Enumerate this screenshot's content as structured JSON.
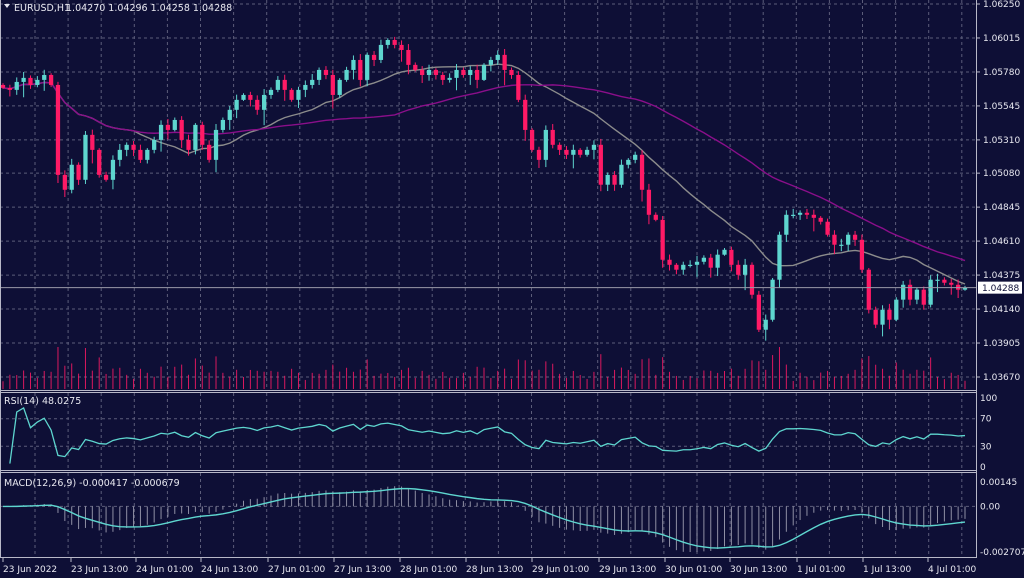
{
  "header": {
    "symbol": "EURUSD,H1",
    "ohlc": "1.04270 1.04296 1.04258 1.04288"
  },
  "colors": {
    "background": "#0e0f36",
    "bull": "#5ed6cf",
    "bear": "#ff1a66",
    "ma_fast": "#8c8c8c",
    "ma_slow": "#8a0f8a",
    "rsi": "#5ed6cf",
    "macd_hist": "#b0b0c0",
    "macd_signal": "#5ed6cf",
    "grid": "#5c5d7a"
  },
  "chart_data": {
    "type": "candlestick",
    "price_axis": {
      "range": [
        1.0367,
        1.0625
      ],
      "ticks": [
        "1.06250",
        "1.06015",
        "1.05780",
        "1.05545",
        "1.05310",
        "1.05080",
        "1.04845",
        "1.04610",
        "1.04375",
        "1.04140",
        "1.03905",
        "1.03670"
      ]
    },
    "current_price": "1.04288",
    "time_axis": [
      "23 Jun 2022",
      "23 Jun 13:00",
      "24 Jun 01:00",
      "24 Jun 13:00",
      "27 Jun 01:00",
      "27 Jun 13:00",
      "28 Jun 01:00",
      "28 Jun 13:00",
      "29 Jun 01:00",
      "29 Jun 13:00",
      "30 Jun 01:00",
      "30 Jun 13:00",
      "1 Jul 01:00",
      "1 Jul 13:00",
      "4 Jul 01:00"
    ],
    "grid": true,
    "closes": [
      1.0567,
      1.05656,
      1.05711,
      1.05739,
      1.0569,
      1.05725,
      1.05759,
      1.0569,
      1.05068,
      1.04965,
      1.05138,
      1.05034,
      1.05345,
      1.05241,
      1.05068,
      1.05034,
      1.05172,
      1.05241,
      1.05276,
      1.05241,
      1.05172,
      1.05241,
      1.0531,
      1.05414,
      1.05379,
      1.05448,
      1.0531,
      1.05241,
      1.05414,
      1.05276,
      1.05172,
      1.05379,
      1.05448,
      1.05518,
      1.05587,
      1.05621,
      1.05587,
      1.05518,
      1.05621,
      1.05656,
      1.05725,
      1.05656,
      1.05587,
      1.05656,
      1.0569,
      1.05725,
      1.05794,
      1.05759,
      1.05621,
      1.05725,
      1.05794,
      1.05863,
      1.05725,
      1.05898,
      1.05863,
      1.05967,
      1.06001,
      1.05967,
      1.05932,
      1.05829,
      1.05794,
      1.05759,
      1.05794,
      1.05759,
      1.05725,
      1.05739,
      1.05794,
      1.05759,
      1.05794,
      1.05725,
      1.05829,
      1.05863,
      1.05898,
      1.05794,
      1.05759,
      1.05587,
      1.05379,
      1.05241,
      1.05172,
      1.05379,
      1.05276,
      1.05241,
      1.05207,
      1.05241,
      1.05207,
      1.05241,
      1.05276,
      1.05,
      1.05068,
      1.05,
      1.05138,
      1.05172,
      1.05207,
      1.04965,
      1.04792,
      1.04757,
      1.04481,
      1.04446,
      1.04412,
      1.04446,
      1.04446,
      1.04467,
      1.04495,
      1.04426,
      1.04516,
      1.0455,
      1.04446,
      1.04377,
      1.04446,
      1.04239,
      1.03997,
      1.04066,
      1.04343,
      1.04654,
      1.04792,
      1.04792,
      1.04806,
      1.04792,
      1.04771,
      1.04744,
      1.04654,
      1.04585,
      1.04585,
      1.04654,
      1.04619,
      1.04412,
      1.04135,
      1.04032,
      1.04135,
      1.04066,
      1.04205,
      1.04308,
      1.04205,
      1.04274,
      1.0417,
      1.04343,
      1.04343,
      1.04322,
      1.04308,
      1.04274,
      1.04288
    ],
    "indicators": {
      "rsi": {
        "label": "RSI(14) 48.0275",
        "period": 14,
        "levels": [
          "100",
          "70",
          "30",
          "0"
        ]
      },
      "macd": {
        "label": "MACD(12,26,9) -0.000417 -0.000679",
        "params": [
          12,
          26,
          9
        ],
        "ticks": [
          "0.00145",
          "0.00",
          "-0.002707"
        ],
        "range": [
          -0.002707,
          0.00145
        ]
      },
      "moving_averages": [
        {
          "period": 20
        },
        {
          "period": 50
        }
      ]
    }
  }
}
